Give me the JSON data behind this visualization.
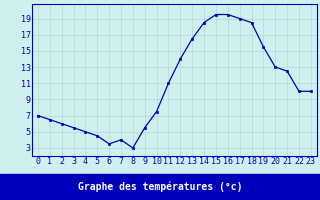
{
  "hours": [
    0,
    1,
    2,
    3,
    4,
    5,
    6,
    7,
    8,
    9,
    10,
    11,
    12,
    13,
    14,
    15,
    16,
    17,
    18,
    19,
    20,
    21,
    22,
    23
  ],
  "temps": [
    7.0,
    6.5,
    6.0,
    5.5,
    5.0,
    4.5,
    3.5,
    4.0,
    3.0,
    5.5,
    7.5,
    11.0,
    14.0,
    16.5,
    18.5,
    19.5,
    19.5,
    19.0,
    18.5,
    15.5,
    13.0,
    12.5,
    10.0,
    10.0
  ],
  "line_color": "#0000bb",
  "marker": "s",
  "marker_size": 2.0,
  "bg_color": "#d0f0f0",
  "grid_color": "#b0d8d8",
  "xlabel": "Graphe des températures (°c)",
  "xlabel_color": "#0000bb",
  "xlabel_fontsize": 7.0,
  "tick_color": "#0000bb",
  "tick_fontsize": 6.0,
  "yticks": [
    3,
    5,
    7,
    9,
    11,
    13,
    15,
    17,
    19
  ],
  "ylim": [
    2.0,
    20.8
  ],
  "xlim": [
    -0.5,
    23.5
  ],
  "bottom_bar_color": "#0000bb",
  "bottom_bar_text_color": "#ffffff"
}
